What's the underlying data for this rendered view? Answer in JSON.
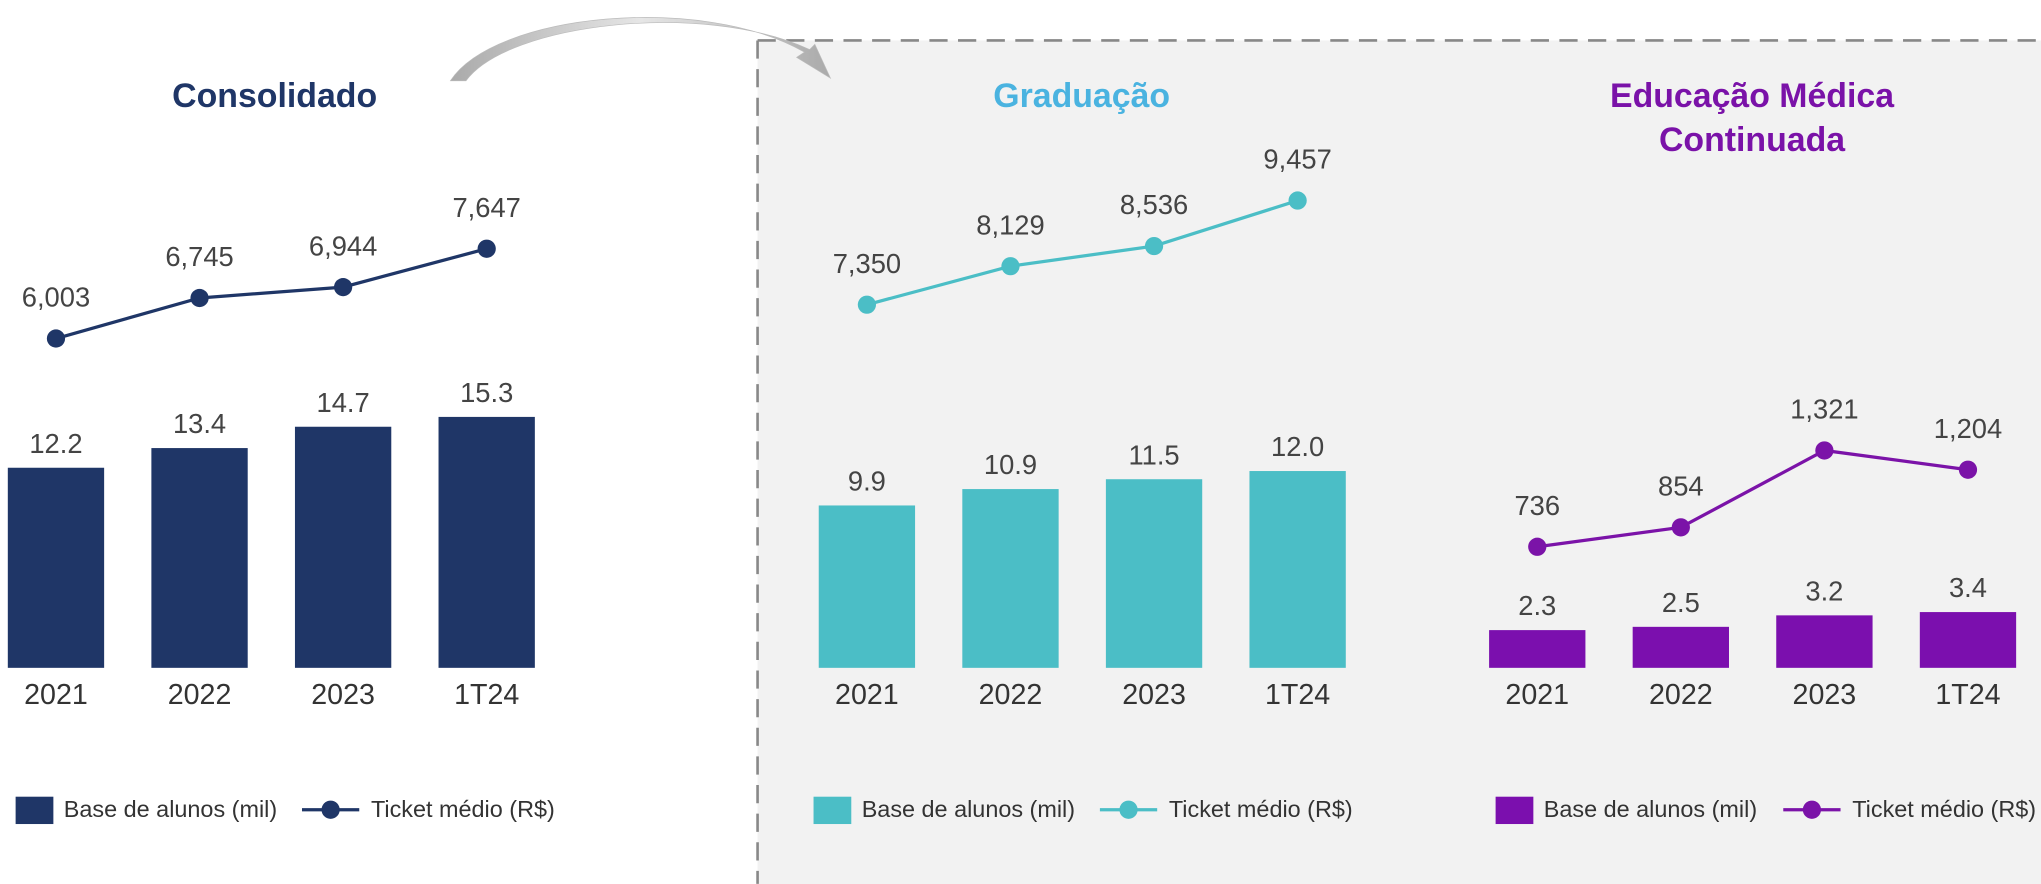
{
  "chart_data": [
    {
      "type": "combo",
      "title": "Consolidado",
      "title_color": "#1f3667",
      "categories": [
        "2021",
        "2022",
        "2023",
        "1T24"
      ],
      "series": [
        {
          "name": "Base de alunos (mil)",
          "type": "bar",
          "color": "#1f3667",
          "values": [
            12.2,
            13.4,
            14.7,
            15.3
          ]
        },
        {
          "name": "Ticket médio (R$)",
          "type": "line",
          "color": "#1f3667",
          "values": [
            6003,
            6745,
            6944,
            7647
          ],
          "value_labels": [
            "6,003",
            "6,745",
            "6,944",
            "7,647"
          ]
        }
      ]
    },
    {
      "type": "combo",
      "title": "Graduação",
      "title_color": "#4ab3e0",
      "categories": [
        "2021",
        "2022",
        "2023",
        "1T24"
      ],
      "series": [
        {
          "name": "Base de alunos (mil)",
          "type": "bar",
          "color": "#4bbec6",
          "values": [
            9.9,
            10.9,
            11.5,
            12.0
          ],
          "value_labels": [
            "9.9",
            "10.9",
            "11.5",
            "12.0"
          ]
        },
        {
          "name": "Ticket médio (R$)",
          "type": "line",
          "color": "#4bbec6",
          "values": [
            7350,
            8129,
            8536,
            9457
          ],
          "value_labels": [
            "7,350",
            "8,129",
            "8,536",
            "9,457"
          ]
        }
      ]
    },
    {
      "type": "combo",
      "title": "Educação Médica Continuada",
      "title_color": "#7a12a8",
      "categories": [
        "2021",
        "2022",
        "2023",
        "1T24"
      ],
      "series": [
        {
          "name": "Base de alunos (mil)",
          "type": "bar",
          "color": "#7b0fae",
          "values": [
            2.3,
            2.5,
            3.2,
            3.4
          ]
        },
        {
          "name": "Ticket médio (R$)",
          "type": "line",
          "color": "#7b13a8",
          "values": [
            736,
            854,
            1321,
            1204
          ],
          "value_labels": [
            "736",
            "854",
            "1,321",
            "1,204"
          ]
        }
      ]
    }
  ]
}
